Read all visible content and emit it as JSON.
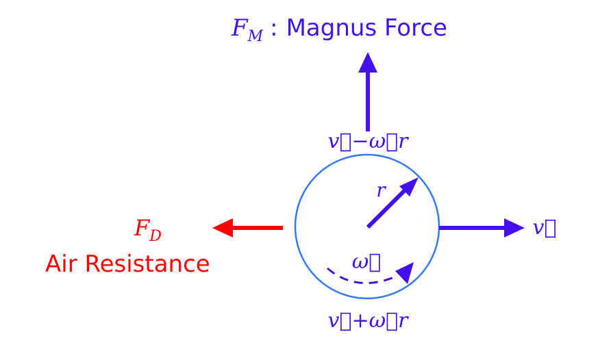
{
  "diagram": {
    "magnus": {
      "symbol": "F",
      "subscript": "M",
      "separator": ":",
      "label": "Magnus Force"
    },
    "drag": {
      "symbol": "F",
      "subscript": "D",
      "label": "Air Resistance"
    },
    "velocity": {
      "label": "v⃗"
    },
    "top_surface": {
      "label": "v⃗−ω⃗r"
    },
    "bottom_surface": {
      "label": "v⃗+ω⃗r"
    },
    "radius": {
      "label": "r"
    },
    "spin": {
      "label": "ω⃗"
    }
  },
  "colors": {
    "blue_text": "#4411ee",
    "blue_arrow": "#4411ee",
    "red": "#ff0000",
    "circle": "#3377ff",
    "background": "#ffffff"
  }
}
